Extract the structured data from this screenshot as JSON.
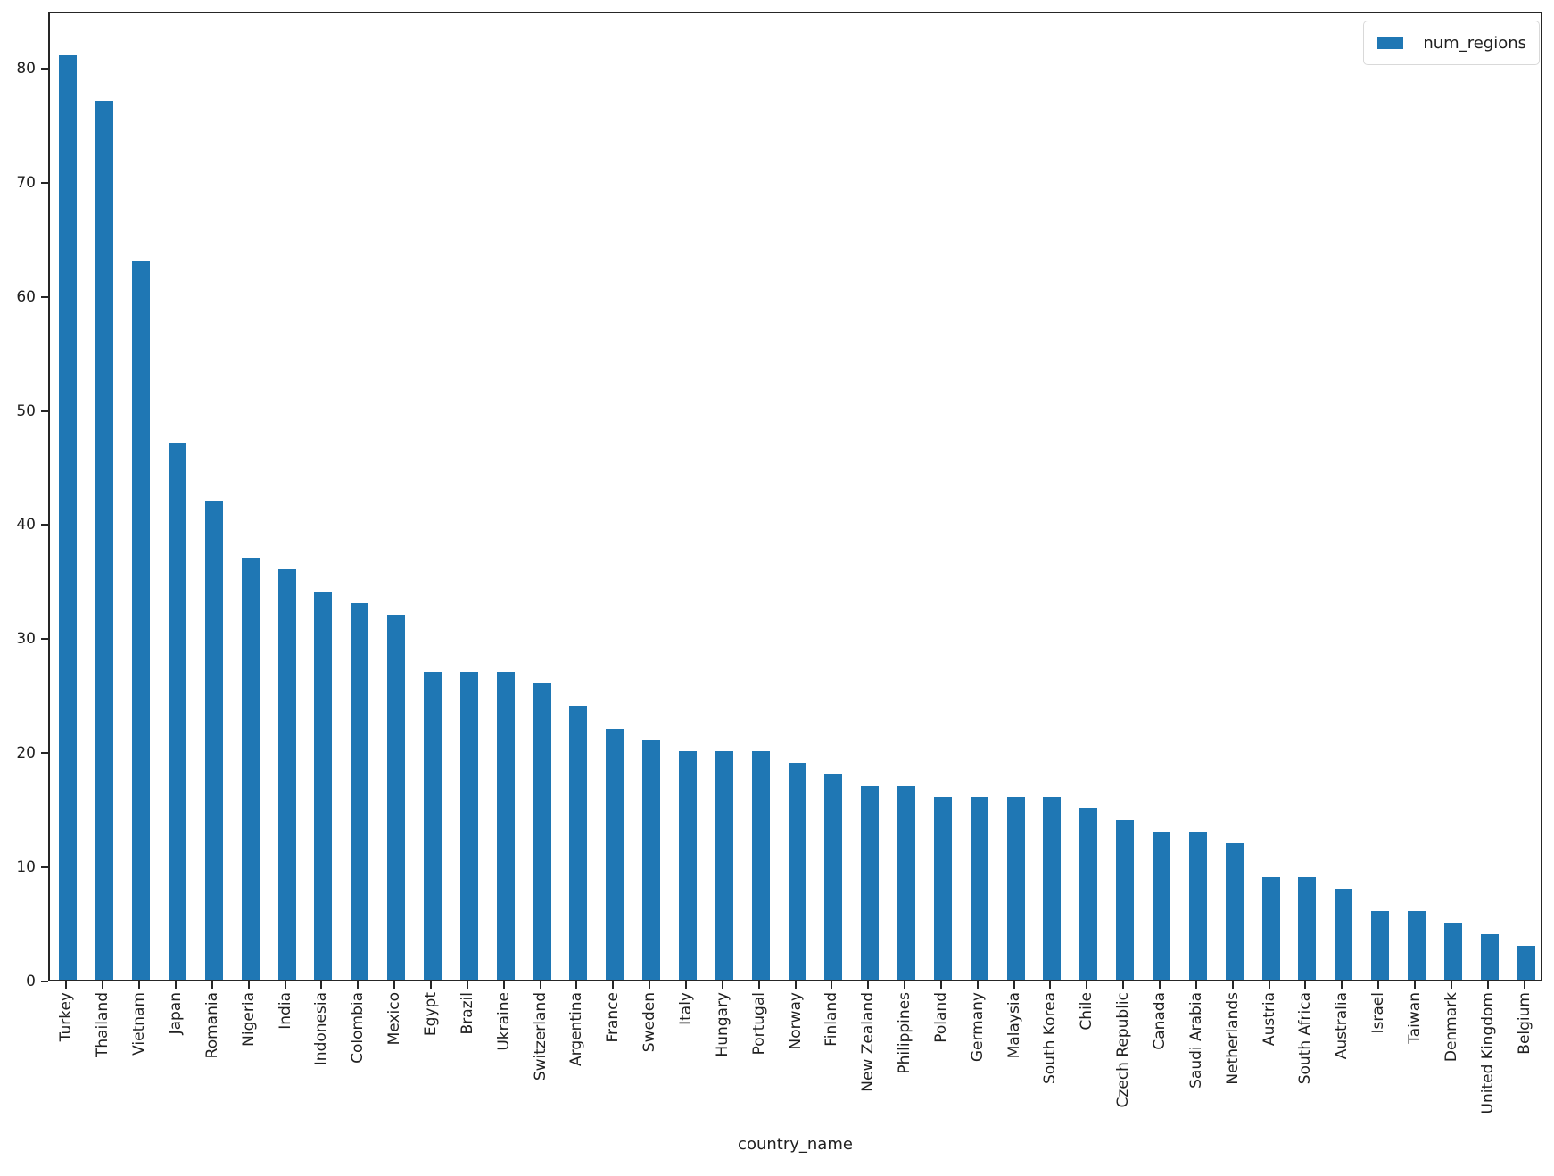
{
  "chart_data": {
    "type": "bar",
    "title": "",
    "xlabel": "country_name",
    "ylabel": "",
    "categories": [
      "Turkey",
      "Thailand",
      "Vietnam",
      "Japan",
      "Romania",
      "Nigeria",
      "India",
      "Indonesia",
      "Colombia",
      "Mexico",
      "Egypt",
      "Brazil",
      "Ukraine",
      "Switzerland",
      "Argentina",
      "France",
      "Sweden",
      "Italy",
      "Hungary",
      "Portugal",
      "Norway",
      "Finland",
      "New Zealand",
      "Philippines",
      "Poland",
      "Germany",
      "Malaysia",
      "South Korea",
      "Chile",
      "Czech Republic",
      "Canada",
      "Saudi Arabia",
      "Netherlands",
      "Austria",
      "South Africa",
      "Australia",
      "Israel",
      "Taiwan",
      "Denmark",
      "United Kingdom",
      "Belgium"
    ],
    "series": [
      {
        "name": "num_regions",
        "color": "#1f77b4",
        "values": [
          81,
          77,
          63,
          47,
          42,
          37,
          36,
          34,
          33,
          32,
          27,
          27,
          27,
          26,
          24,
          22,
          21,
          20,
          20,
          20,
          19,
          18,
          17,
          17,
          16,
          16,
          16,
          16,
          15,
          14,
          13,
          13,
          12,
          9,
          9,
          8,
          6,
          6,
          5,
          4,
          3
        ]
      }
    ],
    "ylim": [
      0,
      85
    ],
    "yticks": [
      0,
      10,
      20,
      30,
      40,
      50,
      60,
      70,
      80
    ],
    "xtick_rotation_deg": 90,
    "grid": false,
    "legend_position": "upper right",
    "bar_width_fraction": 0.5
  },
  "colors": {
    "bar": "#1f77b4",
    "spine": "#262626",
    "text": "#202020",
    "legend_border": "#d9d9d9"
  }
}
